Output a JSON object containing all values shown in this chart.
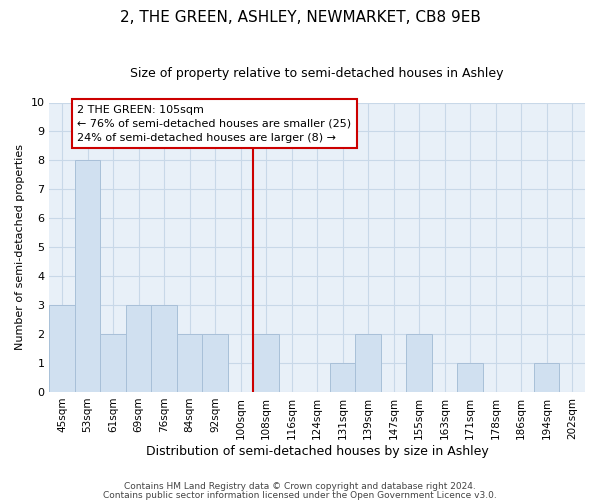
{
  "title": "2, THE GREEN, ASHLEY, NEWMARKET, CB8 9EB",
  "subtitle": "Size of property relative to semi-detached houses in Ashley",
  "xlabel": "Distribution of semi-detached houses by size in Ashley",
  "ylabel": "Number of semi-detached properties",
  "bar_color": "#d0e0f0",
  "bar_edge_color": "#a8c0d8",
  "categories": [
    "45sqm",
    "53sqm",
    "61sqm",
    "69sqm",
    "76sqm",
    "84sqm",
    "92sqm",
    "100sqm",
    "108sqm",
    "116sqm",
    "124sqm",
    "131sqm",
    "139sqm",
    "147sqm",
    "155sqm",
    "163sqm",
    "171sqm",
    "178sqm",
    "186sqm",
    "194sqm",
    "202sqm"
  ],
  "values": [
    3,
    8,
    2,
    3,
    3,
    2,
    2,
    0,
    2,
    0,
    0,
    1,
    2,
    0,
    2,
    0,
    1,
    0,
    0,
    1,
    0
  ],
  "ylim": [
    0,
    10
  ],
  "yticks": [
    0,
    1,
    2,
    3,
    4,
    5,
    6,
    7,
    8,
    9,
    10
  ],
  "property_line_label": "2 THE GREEN: 105sqm",
  "annotation_line1": "← 76% of semi-detached houses are smaller (25)",
  "annotation_line2": "24% of semi-detached houses are larger (8) →",
  "footnote1": "Contains HM Land Registry data © Crown copyright and database right 2024.",
  "footnote2": "Contains public sector information licensed under the Open Government Licence v3.0.",
  "grid_color": "#c8d8e8",
  "bg_color": "#ffffff",
  "plot_bg_color": "#e8f0f8",
  "line_color": "#cc0000",
  "box_edge_color": "#cc0000",
  "title_fontsize": 11,
  "subtitle_fontsize": 9,
  "ylabel_fontsize": 8,
  "xlabel_fontsize": 9,
  "tick_fontsize": 7.5,
  "annot_fontsize": 8,
  "footnote_fontsize": 6.5
}
